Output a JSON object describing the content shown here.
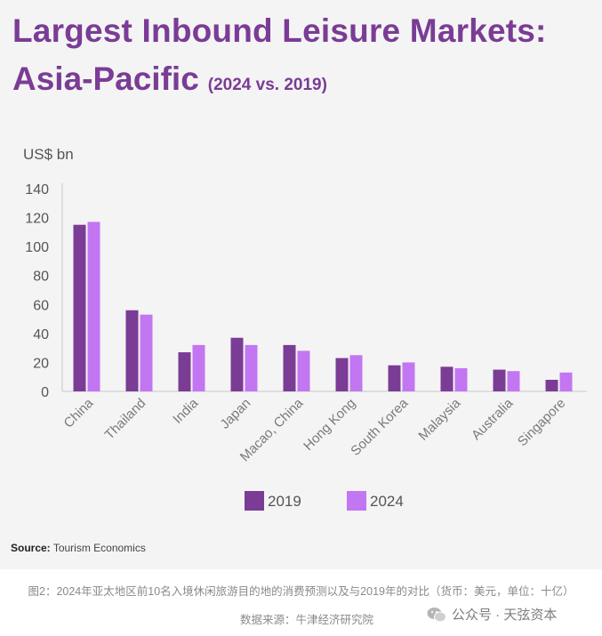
{
  "title_line1": "Largest Inbound Leisure Markets:",
  "title_line2": "Asia-Pacific",
  "subtitle": "(2024 vs. 2019)",
  "unit_label": "US$ bn",
  "source_label": "Source:",
  "source_text": "Tourism Economics",
  "caption": "图2：2024年亚太地区前10名入境休闲旅游目的地的消费预测以及与2019年的对比（货币：美元，单位：十亿）",
  "data_source": "数据来源：牛津经济研究院",
  "watermark": "公众号 · 天弦资本",
  "colors": {
    "s2019": "#7a3c95",
    "s2024": "#c376f2",
    "title": "#7a3c95"
  },
  "chart_data": {
    "type": "bar",
    "title": "Largest Inbound Leisure Markets: Asia-Pacific",
    "subtitle": "(2024 vs. 2019)",
    "xlabel": "",
    "ylabel": "US$ bn",
    "ylim": [
      0,
      140
    ],
    "yticks": [
      0,
      20,
      40,
      60,
      80,
      100,
      120,
      140
    ],
    "categories": [
      "China",
      "Thailand",
      "India",
      "Japan",
      "Macao, China",
      "Hong Kong",
      "South Korea",
      "Malaysia",
      "Australia",
      "Singapore"
    ],
    "series": [
      {
        "name": "2019",
        "values": [
          115,
          56,
          27,
          37,
          32,
          23,
          18,
          17,
          15,
          8
        ]
      },
      {
        "name": "2024",
        "values": [
          117,
          53,
          32,
          32,
          28,
          25,
          20,
          16,
          14,
          13
        ]
      }
    ],
    "legend": "bottom-center",
    "grid": false
  }
}
